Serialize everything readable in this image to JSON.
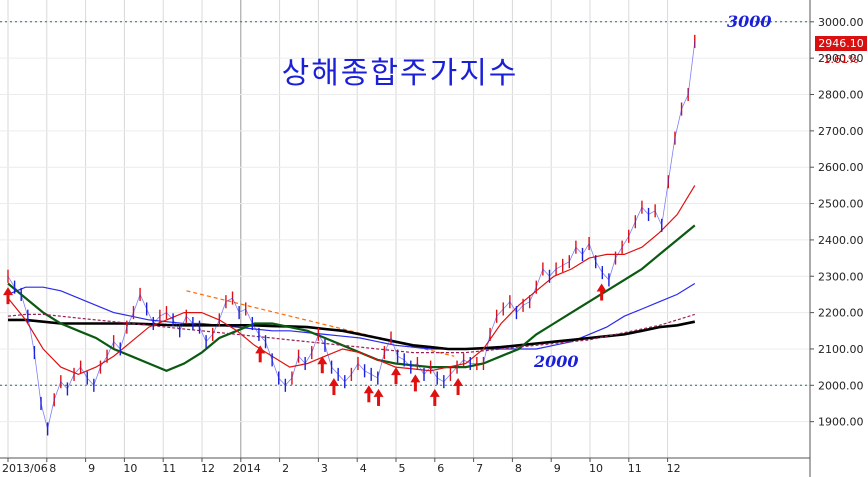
{
  "chart_data": {
    "type": "line",
    "title": "상해종합주가지수",
    "x_ticks": [
      "2013/06",
      "8",
      "9",
      "10",
      "11",
      "12",
      "2014",
      "2",
      "3",
      "4",
      "5",
      "6",
      "7",
      "8",
      "9",
      "10",
      "11",
      "12"
    ],
    "y_ticks": [
      "1900.00",
      "2000.00",
      "2100.00",
      "2200.00",
      "2300.00",
      "2400.00",
      "2500.00",
      "2600.00",
      "2700.00",
      "2800.00",
      "2900.00",
      "3000.00"
    ],
    "ylim": [
      1800,
      3060
    ],
    "last_price": "2946.10",
    "change_pct": "1.61%",
    "annotations": {
      "level_high": "3000",
      "level_low": "2000"
    },
    "reference_lines": [
      3000,
      2000
    ],
    "arrow_months": [
      0.0,
      6.5,
      8.1,
      8.4,
      9.3,
      9.55,
      10.0,
      10.5,
      11.0,
      11.6,
      15.3
    ],
    "grid": true,
    "price": [
      2300,
      2270,
      2250,
      2190,
      2090,
      1950,
      1880,
      1960,
      2010,
      1990,
      2030,
      2050,
      2020,
      2000,
      2050,
      2080,
      2120,
      2100,
      2160,
      2200,
      2250,
      2210,
      2170,
      2190,
      2200,
      2180,
      2150,
      2190,
      2170,
      2160,
      2120,
      2140,
      2180,
      2230,
      2240,
      2200,
      2210,
      2170,
      2140,
      2120,
      2070,
      2020,
      2000,
      2020,
      2080,
      2060,
      2090,
      2140,
      2110,
      2050,
      2030,
      2010,
      2030,
      2060,
      2040,
      2030,
      2020,
      2090,
      2130,
      2080,
      2070,
      2050,
      2060,
      2030,
      2050,
      2020,
      2010,
      2030,
      2050,
      2070,
      2060,
      2060,
      2060,
      2140,
      2190,
      2210,
      2230,
      2200,
      2220,
      2230,
      2270,
      2320,
      2300,
      2320,
      2330,
      2340,
      2380,
      2360,
      2390,
      2340,
      2310,
      2290,
      2350,
      2380,
      2410,
      2450,
      2490,
      2470,
      2480,
      2440,
      2560,
      2680,
      2760,
      2800,
      2946.1
    ],
    "series": [
      {
        "color": "#2a2af0",
        "values": [
          2250,
          2270,
          2270,
          2260,
          2240,
          2220,
          2200,
          2190,
          2180,
          2175,
          2170,
          2170,
          2165,
          2160,
          2155,
          2150,
          2150,
          2145,
          2140,
          2135,
          2130,
          2120,
          2110,
          2105,
          2100,
          2100,
          2100,
          2100,
          2100,
          2100,
          2100,
          2110,
          2120,
          2140,
          2160,
          2190,
          2210,
          2230,
          2250,
          2280
        ]
      },
      {
        "color": "#000000",
        "values": [
          2180,
          2180,
          2175,
          2170,
          2170,
          2170,
          2170,
          2170,
          2168,
          2166,
          2165,
          2165,
          2165,
          2165,
          2165,
          2163,
          2162,
          2160,
          2155,
          2150,
          2140,
          2130,
          2120,
          2110,
          2105,
          2100,
          2100,
          2102,
          2105,
          2110,
          2115,
          2120,
          2125,
          2130,
          2135,
          2140,
          2150,
          2160,
          2165,
          2175
        ]
      },
      {
        "color": "#0a5a12",
        "values": [
          2280,
          2240,
          2200,
          2170,
          2150,
          2130,
          2100,
          2080,
          2060,
          2040,
          2060,
          2090,
          2130,
          2150,
          2170,
          2170,
          2160,
          2150,
          2130,
          2110,
          2090,
          2070,
          2060,
          2055,
          2050,
          2050,
          2050,
          2060,
          2080,
          2100,
          2140,
          2170,
          2200,
          2230,
          2260,
          2290,
          2320,
          2360,
          2400,
          2440
        ]
      },
      {
        "color": "#e01010",
        "values": [
          2240,
          2180,
          2100,
          2050,
          2030,
          2050,
          2080,
          2120,
          2160,
          2180,
          2200,
          2200,
          2180,
          2150,
          2110,
          2080,
          2050,
          2060,
          2080,
          2100,
          2090,
          2070,
          2050,
          2045,
          2040,
          2050,
          2060,
          2100,
          2170,
          2220,
          2260,
          2300,
          2320,
          2350,
          2360,
          2360,
          2380,
          2420,
          2470,
          2550
        ]
      },
      {
        "color": "#9a1f5a",
        "values": [
          2190,
          2195,
          2195,
          2190,
          2185,
          2180,
          2175,
          2170,
          2165,
          2160,
          2155,
          2150,
          2145,
          2140,
          2135,
          2130,
          2125,
          2120,
          2115,
          2110,
          2105,
          2100,
          2095,
          2090,
          2090,
          2090,
          2090,
          2095,
          2100,
          2105,
          2110,
          2115,
          2120,
          2125,
          2135,
          2145,
          2155,
          2165,
          2180,
          2195
        ]
      }
    ],
    "trendline": {
      "color": "#ff6a00",
      "from": [
        4.6,
        2260
      ],
      "to": [
        11.5,
        2080
      ]
    }
  }
}
